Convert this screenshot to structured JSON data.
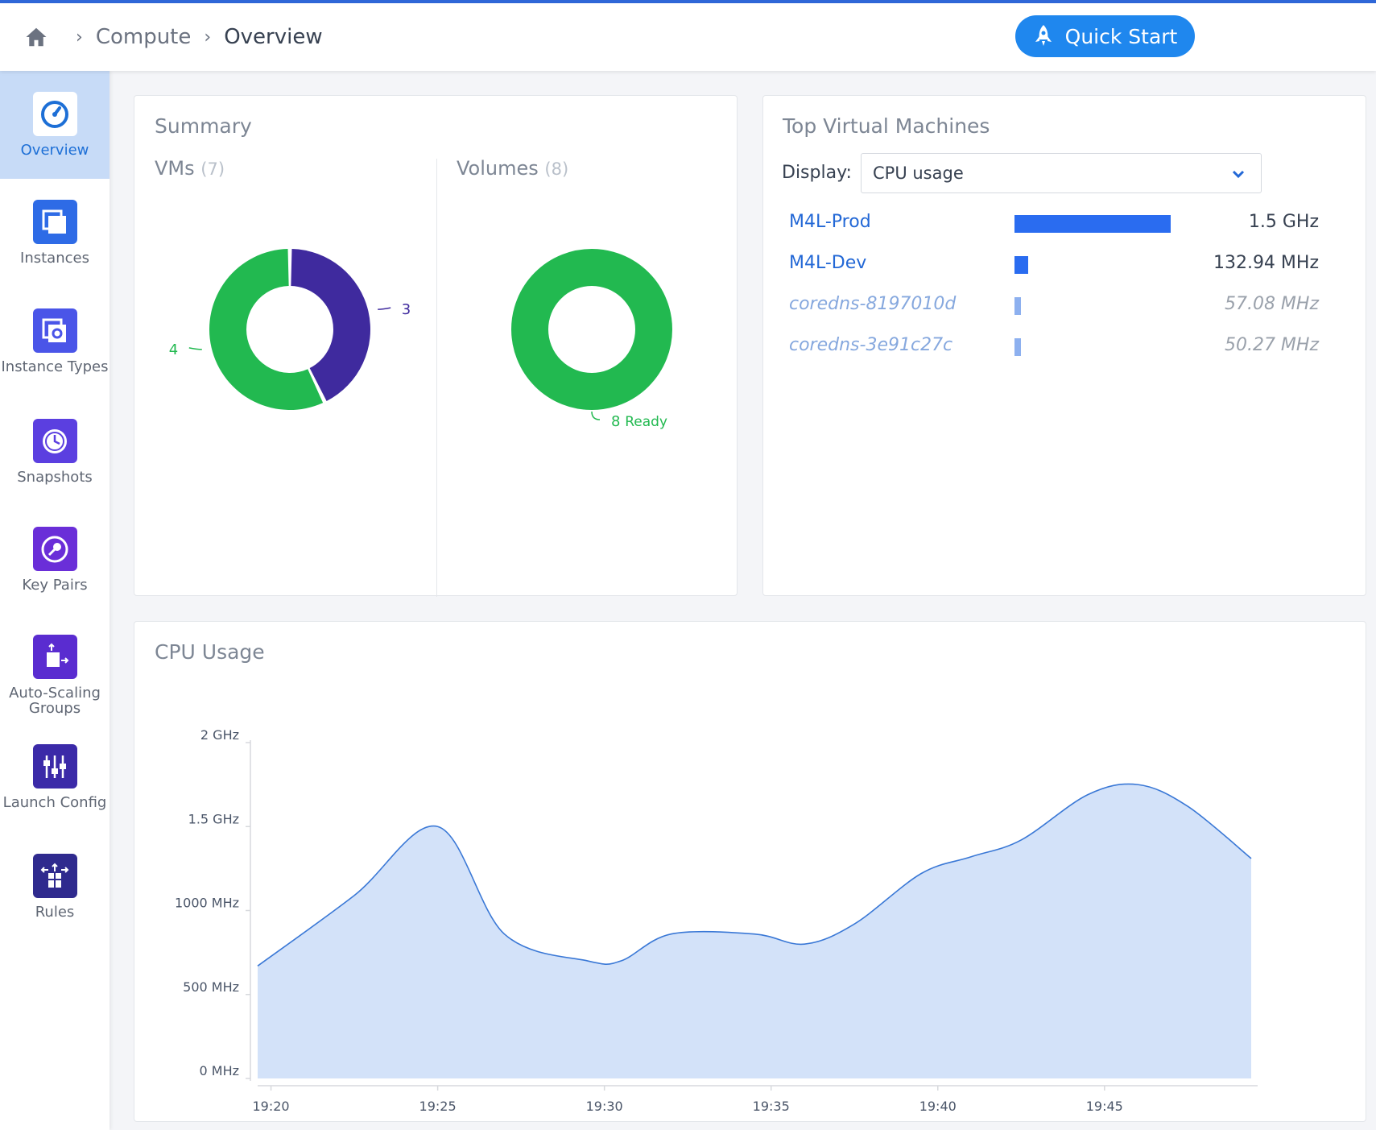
{
  "header": {
    "breadcrumb": [
      "Compute",
      "Overview"
    ],
    "quick_start_label": "Quick Start"
  },
  "sidebar": {
    "items": [
      {
        "label": "Overview",
        "icon": "gauge-icon",
        "active": true
      },
      {
        "label": "Instances",
        "icon": "instances-icon",
        "active": false
      },
      {
        "label": "Instance Types",
        "icon": "instance-types-icon",
        "active": false
      },
      {
        "label": "Snapshots",
        "icon": "snapshot-clock-icon",
        "active": false
      },
      {
        "label": "Key Pairs",
        "icon": "key-icon",
        "active": false
      },
      {
        "label": "Auto-Scaling Groups",
        "icon": "auto-scaling-icon",
        "active": false
      },
      {
        "label": "Launch Config",
        "icon": "sliders-icon",
        "active": false
      },
      {
        "label": "Rules",
        "icon": "rules-icon",
        "active": false
      }
    ]
  },
  "summary": {
    "title": "Summary",
    "vms": {
      "label": "VMs",
      "count": "(7)",
      "segments": [
        {
          "value": 3,
          "label": "3",
          "color": "#3f2a9e"
        },
        {
          "value": 4,
          "label": "4",
          "color": "#22b950"
        }
      ]
    },
    "volumes": {
      "label": "Volumes",
      "count": "(8)",
      "segments": [
        {
          "value": 8,
          "label": "8",
          "status": "Ready",
          "color": "#22b950"
        }
      ]
    }
  },
  "top_vms": {
    "title": "Top Virtual Machines",
    "display_label": "Display:",
    "display_value": "CPU usage",
    "rows": [
      {
        "name": "M4L-Prod",
        "value": "1.5 GHz",
        "fraction": 1.0,
        "dim": false
      },
      {
        "name": "M4L-Dev",
        "value": "132.94 MHz",
        "fraction": 0.09,
        "dim": false
      },
      {
        "name": "coredns-8197010d",
        "value": "57.08 MHz",
        "fraction": 0.04,
        "dim": true
      },
      {
        "name": "coredns-3e91c27c",
        "value": "50.27 MHz",
        "fraction": 0.035,
        "dim": true
      }
    ]
  },
  "chart_data": {
    "type": "area",
    "title": "CPU Usage",
    "y_ticks": [
      "0 MHz",
      "500 MHz",
      "1000 MHz",
      "1.5 GHz",
      "2 GHz"
    ],
    "x_ticks": [
      "19:20",
      "19:25",
      "19:30",
      "19:35",
      "19:40",
      "19:45"
    ],
    "ylim": [
      0,
      2000
    ],
    "xlim_minutes": [
      19.6,
      49.4
    ],
    "series": [
      {
        "color": "#3a78d6",
        "fill": "#d3e2f9",
        "x_minutes": [
          19.6,
          22.5,
          25.0,
          27.0,
          29.5,
          30.5,
          32.0,
          34.5,
          36.0,
          37.5,
          39.5,
          41.0,
          42.5,
          44.5,
          46.0,
          47.5,
          49.4
        ],
        "values": [
          670,
          1090,
          1500,
          860,
          700,
          700,
          860,
          860,
          800,
          920,
          1220,
          1320,
          1420,
          1690,
          1750,
          1620,
          1310
        ]
      }
    ]
  }
}
